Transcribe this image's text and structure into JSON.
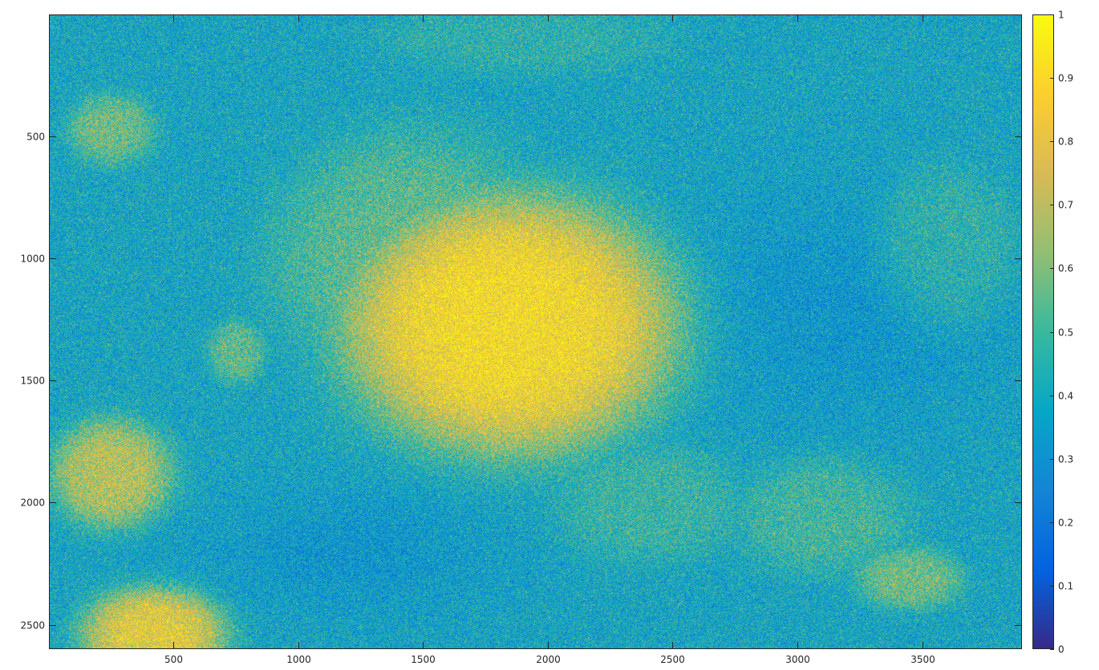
{
  "chart_data": {
    "type": "heatmap",
    "title": "",
    "xlabel": "",
    "ylabel": "",
    "xlim": [
      1,
      3900
    ],
    "ylim": [
      1,
      2600
    ],
    "y_direction": "reversed",
    "x_ticks": [
      500,
      1000,
      1500,
      2000,
      2500,
      3000,
      3500
    ],
    "y_ticks": [
      500,
      1000,
      1500,
      2000,
      2500
    ],
    "colorbar": {
      "range": [
        0,
        1
      ],
      "ticks": [
        0,
        0.1,
        0.2,
        0.3,
        0.4,
        0.5,
        0.6,
        0.7,
        0.8,
        0.9,
        1
      ],
      "tick_labels": [
        "0",
        "0.1",
        "0.2",
        "0.3",
        "0.4",
        "0.5",
        "0.6",
        "0.7",
        "0.8",
        "0.9",
        "1"
      ],
      "colormap": "parula",
      "colormap_stops": [
        "#352a87",
        "#0363e1",
        "#1485d4",
        "#06a7c6",
        "#38b99e",
        "#92bf73",
        "#d9ba56",
        "#fcce2e",
        "#f9fb0e"
      ]
    },
    "field": {
      "background_level": 0.38,
      "noise_level": 0.22,
      "bright_regions": [
        {
          "cx": 1850,
          "cy": 1270,
          "rx": 690,
          "ry": 540,
          "level": 0.88
        },
        {
          "cx": 1450,
          "cy": 1000,
          "rx": 560,
          "ry": 520,
          "level": 0.55
        },
        {
          "cx": 420,
          "cy": 2540,
          "rx": 300,
          "ry": 200,
          "level": 0.8
        },
        {
          "cx": 250,
          "cy": 1880,
          "rx": 250,
          "ry": 230,
          "level": 0.7
        },
        {
          "cx": 250,
          "cy": 470,
          "rx": 180,
          "ry": 150,
          "level": 0.58
        },
        {
          "cx": 3450,
          "cy": 2310,
          "rx": 220,
          "ry": 130,
          "level": 0.58
        },
        {
          "cx": 750,
          "cy": 1380,
          "rx": 120,
          "ry": 130,
          "level": 0.55
        },
        {
          "cx": 3100,
          "cy": 2050,
          "rx": 350,
          "ry": 250,
          "level": 0.5
        },
        {
          "cx": 3600,
          "cy": 950,
          "rx": 300,
          "ry": 350,
          "level": 0.48
        },
        {
          "cx": 2400,
          "cy": 2000,
          "rx": 400,
          "ry": 250,
          "level": 0.48
        },
        {
          "cx": 1900,
          "cy": 100,
          "rx": 600,
          "ry": 150,
          "level": 0.45
        }
      ],
      "dark_regions": [
        {
          "cx": 3200,
          "cy": 1200,
          "rx": 700,
          "ry": 500,
          "level": 0.3
        },
        {
          "cx": 1200,
          "cy": 2200,
          "rx": 600,
          "ry": 250,
          "level": 0.3
        }
      ]
    }
  }
}
